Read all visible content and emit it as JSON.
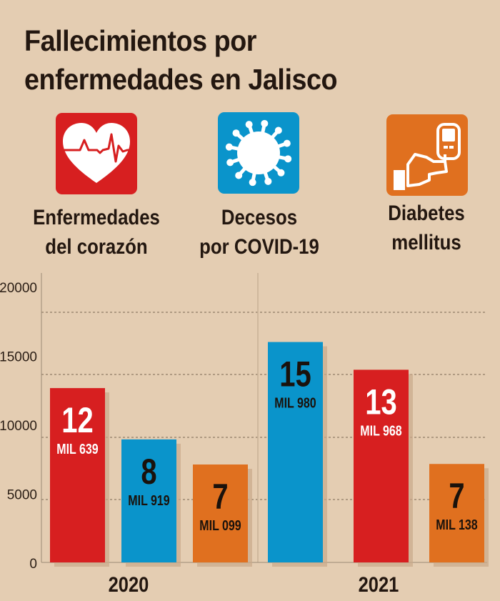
{
  "title_lines": [
    "Fallecimientos por",
    "enfermedades en Jalisco"
  ],
  "categories": [
    {
      "key": "heart",
      "label_lines": [
        "Enfermedades",
        "del corazón"
      ],
      "icon": "heart-ecg-icon",
      "color": "#d71f20"
    },
    {
      "key": "covid",
      "label_lines": [
        "Decesos",
        "por COVID-19"
      ],
      "icon": "virus-icon",
      "color": "#0a94cb"
    },
    {
      "key": "diabetes",
      "label_lines": [
        "Diabetes",
        "mellitus"
      ],
      "icon": "glucometer-icon",
      "color": "#e0701f"
    }
  ],
  "chart_data": {
    "type": "bar",
    "title": "Fallecimientos por enfermedades en Jalisco",
    "xlabel": "",
    "ylabel": "",
    "ylim": [
      0,
      20000
    ],
    "yticks": [
      0,
      5000,
      10000,
      15000,
      20000
    ],
    "ytick_labels": [
      "0",
      "5000",
      "10000",
      "15000",
      "20000"
    ],
    "grid": true,
    "groups": [
      {
        "label": "2020",
        "bars": [
          {
            "series": "Enfermedades del corazón",
            "value": 12639,
            "color": "#d71f20",
            "label_big": "12",
            "label_small": "MIL 639",
            "text_color": "#ffffff"
          },
          {
            "series": "Decesos por COVID-19",
            "value": 8919,
            "color": "#0a94cb",
            "label_big": "8",
            "label_small": "MIL 919",
            "text_color": "#1a120c"
          },
          {
            "series": "Diabetes mellitus",
            "value": 7099,
            "color": "#e0701f",
            "label_big": "7",
            "label_small": "MIL 099",
            "text_color": "#1a120c"
          }
        ]
      },
      {
        "label": "2021",
        "bars": [
          {
            "series": "Decesos por COVID-19",
            "value": 15980,
            "color": "#0a94cb",
            "label_big": "15",
            "label_small": "MIL 980",
            "text_color": "#1a120c"
          },
          {
            "series": "Enfermedades del corazón",
            "value": 13968,
            "color": "#d71f20",
            "label_big": "13",
            "label_small": "MIL 968",
            "text_color": "#ffffff"
          },
          {
            "series": "Diabetes mellitus",
            "value": 7138,
            "color": "#e0701f",
            "label_big": "7",
            "label_small": "MIL 138",
            "text_color": "#1a120c"
          }
        ]
      }
    ]
  }
}
